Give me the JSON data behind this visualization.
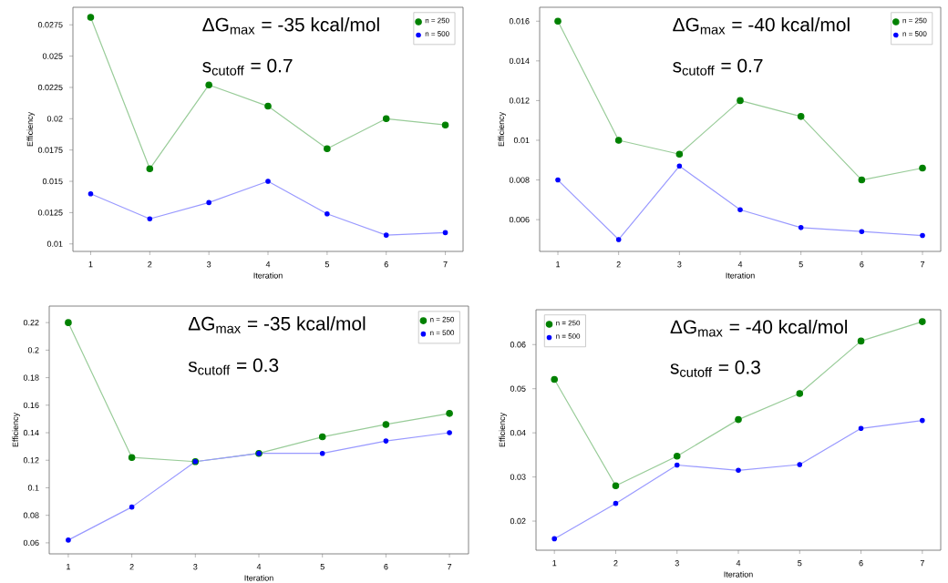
{
  "chart_data": [
    {
      "type": "line",
      "xlabel": "Iteration",
      "ylabel": "Efficiency",
      "annotations": [
        "ΔG$_{max}$ = -35 kcal/mol",
        "s$_{cutoff}$ = 0.7"
      ],
      "x": [
        1,
        2,
        3,
        4,
        5,
        6,
        7
      ],
      "xlim": [
        0.7,
        7.3
      ],
      "xticks": [
        1,
        2,
        3,
        4,
        5,
        6,
        7
      ],
      "ylim": [
        0.0094,
        0.0289
      ],
      "yticks": [
        0.01,
        0.0125,
        0.015,
        0.0175,
        0.02,
        0.0225,
        0.025,
        0.0275
      ],
      "legend": "top right",
      "marker": "circle",
      "line_style": "solid",
      "grid": false,
      "series": [
        {
          "name": "n = 250",
          "color": "#008000",
          "values": [
            0.0281,
            0.016,
            0.0227,
            0.021,
            0.0176,
            0.02,
            0.0195
          ]
        },
        {
          "name": "n = 500",
          "color": "#0000ff",
          "values": [
            0.014,
            0.012,
            0.0133,
            0.015,
            0.0124,
            0.0107,
            0.0109
          ]
        }
      ]
    },
    {
      "type": "line",
      "xlabel": "Iteration",
      "ylabel": "Efficiency",
      "annotations": [
        "ΔG$_{max}$ = -40 kcal/mol",
        "s$_{cutoff}$ = 0.7"
      ],
      "x": [
        1,
        2,
        3,
        4,
        5,
        6,
        7
      ],
      "xlim": [
        0.7,
        7.3
      ],
      "xticks": [
        1,
        2,
        3,
        4,
        5,
        6,
        7
      ],
      "ylim": [
        0.0044,
        0.0167
      ],
      "yticks": [
        0.006,
        0.008,
        0.01,
        0.012,
        0.014,
        0.016
      ],
      "legend": "top right",
      "marker": "circle",
      "line_style": "solid",
      "grid": false,
      "series": [
        {
          "name": "n = 250",
          "color": "#008000",
          "values": [
            0.016,
            0.01,
            0.0093,
            0.012,
            0.0112,
            0.008,
            0.0086
          ]
        },
        {
          "name": "n = 500",
          "color": "#0000ff",
          "values": [
            0.008,
            0.005,
            0.0087,
            0.0065,
            0.0056,
            0.0054,
            0.0052
          ]
        }
      ]
    },
    {
      "type": "line",
      "xlabel": "Iteration",
      "ylabel": "Efficiency",
      "annotations": [
        "ΔG$_{max}$ = -35 kcal/mol",
        "s$_{cutoff}$ = 0.3"
      ],
      "x": [
        1,
        2,
        3,
        4,
        5,
        6,
        7
      ],
      "xlim": [
        0.7,
        7.3
      ],
      "xticks": [
        1,
        2,
        3,
        4,
        5,
        6,
        7
      ],
      "ylim": [
        0.052,
        0.232
      ],
      "yticks": [
        0.06,
        0.08,
        0.1,
        0.12,
        0.14,
        0.16,
        0.18,
        0.2,
        0.22
      ],
      "legend": "top right",
      "marker": "circle",
      "line_style": "solid",
      "grid": false,
      "series": [
        {
          "name": "n = 250",
          "color": "#008000",
          "values": [
            0.22,
            0.122,
            0.119,
            0.125,
            0.137,
            0.146,
            0.154
          ]
        },
        {
          "name": "n = 500",
          "color": "#0000ff",
          "values": [
            0.062,
            0.086,
            0.119,
            0.125,
            0.125,
            0.134,
            0.14
          ]
        }
      ]
    },
    {
      "type": "line",
      "xlabel": "Iteration",
      "ylabel": "Efficiency",
      "annotations": [
        "ΔG$_{max}$ = -40 kcal/mol",
        "s$_{cutoff}$ = 0.3"
      ],
      "x": [
        1,
        2,
        3,
        4,
        5,
        6,
        7
      ],
      "xlim": [
        0.7,
        7.3
      ],
      "xticks": [
        1,
        2,
        3,
        4,
        5,
        6,
        7
      ],
      "ylim": [
        0.0134,
        0.0679
      ],
      "yticks": [
        0.02,
        0.03,
        0.04,
        0.05,
        0.06
      ],
      "legend": "top left",
      "marker": "circle",
      "line_style": "solid",
      "grid": false,
      "series": [
        {
          "name": "n = 250",
          "color": "#008000",
          "values": [
            0.0521,
            0.028,
            0.0347,
            0.043,
            0.0489,
            0.0608,
            0.0652
          ]
        },
        {
          "name": "n = 500",
          "color": "#0000ff",
          "values": [
            0.016,
            0.024,
            0.0327,
            0.0315,
            0.0328,
            0.041,
            0.0428
          ]
        }
      ]
    }
  ]
}
